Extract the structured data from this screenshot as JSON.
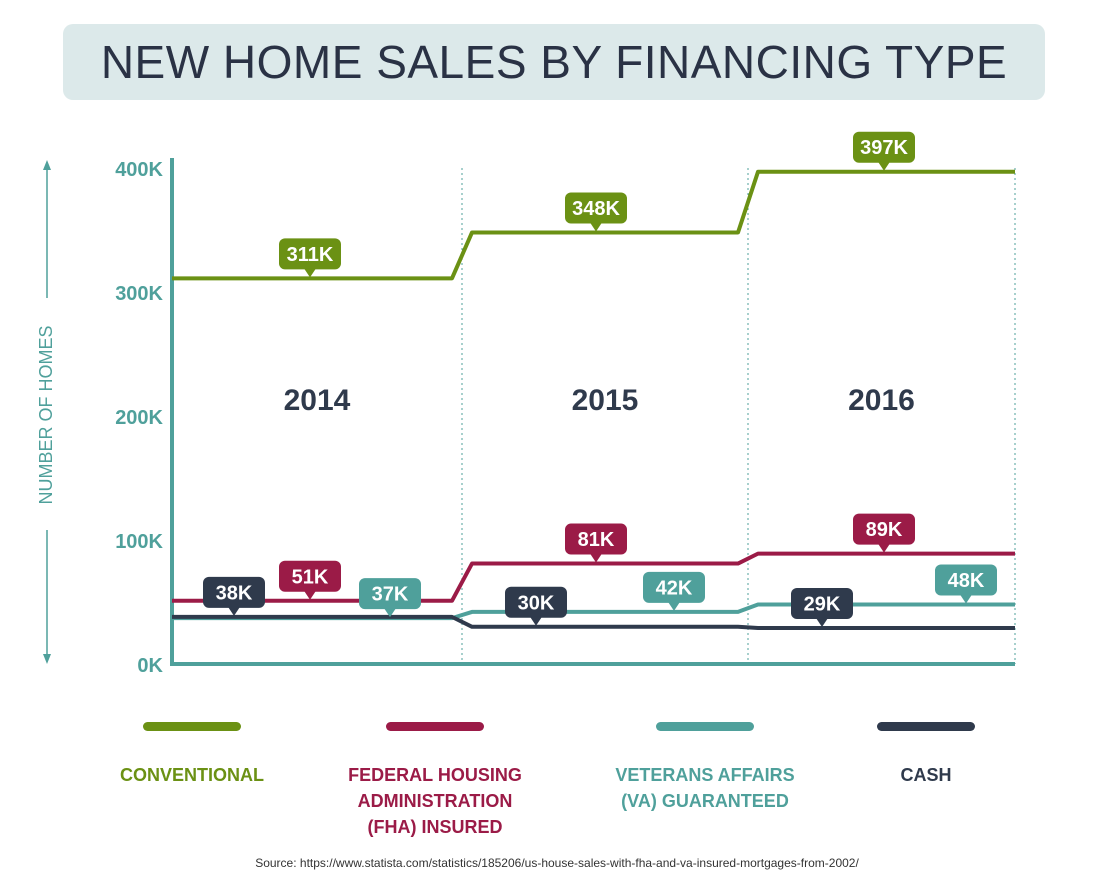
{
  "title": "NEW HOME SALES BY FINANCING TYPE",
  "source": "Source: https://www.statista.com/statistics/185206/us-house-sales-with-fha-and-va-insured-mortgages-from-2002/",
  "chart_data": {
    "type": "line",
    "title": "NEW HOME SALES BY FINANCING TYPE",
    "ylabel": "NUMBER OF HOMES",
    "xlabel": "",
    "categories": [
      "2014",
      "2015",
      "2016"
    ],
    "ylim": [
      0,
      400
    ],
    "yticks": [
      "0K",
      "100K",
      "200K",
      "300K",
      "400K"
    ],
    "unit": "K",
    "series": [
      {
        "name": "CONVENTIONAL",
        "color": "#6b9114",
        "values": [
          311,
          348,
          397
        ],
        "labels": [
          "311K",
          "348K",
          "397K"
        ]
      },
      {
        "name": "FEDERAL HOUSING\nADMINISTRATION\n(FHA)  INSURED",
        "color": "#9b1b47",
        "values": [
          51,
          81,
          89
        ],
        "labels": [
          "51K",
          "81K",
          "89K"
        ]
      },
      {
        "name": "VETERANS AFFAIRS\n(VA) GUARANTEED",
        "color": "#4fa09b",
        "values": [
          37,
          42,
          48
        ],
        "labels": [
          "37K",
          "42K",
          "48K"
        ]
      },
      {
        "name": "CASH",
        "color": "#2f3a4c",
        "values": [
          38,
          30,
          29
        ],
        "labels": [
          "38K",
          "30K",
          "29K"
        ]
      }
    ],
    "legend_position": "bottom",
    "grid": false
  }
}
